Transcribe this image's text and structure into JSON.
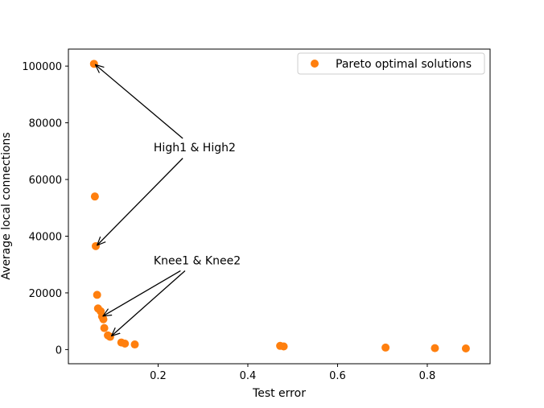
{
  "chart_data": {
    "type": "scatter",
    "xlabel": "Test error",
    "ylabel": "Average local connections",
    "xlim": [
      0.0,
      0.94
    ],
    "ylim": [
      -5000,
      106000
    ],
    "xticks": [
      0.2,
      0.4,
      0.6,
      0.8
    ],
    "xtick_labels": [
      "0.2",
      "0.4",
      "0.6",
      "0.8"
    ],
    "yticks": [
      0,
      20000,
      40000,
      60000,
      80000,
      100000
    ],
    "ytick_labels": [
      "0",
      "20000",
      "40000",
      "60000",
      "80000",
      "100000"
    ],
    "grid": false,
    "legend_position": "top-right",
    "series": [
      {
        "name": "Pareto optimal solutions",
        "color": "#ff7f0e",
        "points": [
          {
            "x": 0.057,
            "y": 100800
          },
          {
            "x": 0.059,
            "y": 54000
          },
          {
            "x": 0.061,
            "y": 36500
          },
          {
            "x": 0.064,
            "y": 19300
          },
          {
            "x": 0.066,
            "y": 14500
          },
          {
            "x": 0.072,
            "y": 13500
          },
          {
            "x": 0.075,
            "y": 11700
          },
          {
            "x": 0.078,
            "y": 10700
          },
          {
            "x": 0.08,
            "y": 7600
          },
          {
            "x": 0.088,
            "y": 5000
          },
          {
            "x": 0.093,
            "y": 4500
          },
          {
            "x": 0.118,
            "y": 2500
          },
          {
            "x": 0.126,
            "y": 2100
          },
          {
            "x": 0.148,
            "y": 1800
          },
          {
            "x": 0.472,
            "y": 1300
          },
          {
            "x": 0.48,
            "y": 1100
          },
          {
            "x": 0.707,
            "y": 700
          },
          {
            "x": 0.817,
            "y": 500
          },
          {
            "x": 0.886,
            "y": 400
          }
        ]
      }
    ],
    "annotations": [
      {
        "text": "High1 & High2",
        "text_anchor": {
          "x": 0.19,
          "y": 70000
        },
        "arrow_from": {
          "x": 0.255,
          "y": 74500
        },
        "arrow_to": {
          "x": 0.06,
          "y": 100500
        }
      },
      {
        "text": "High1 & High2",
        "text_anchor": {
          "x": 0.19,
          "y": 70000
        },
        "arrow_from": {
          "x": 0.255,
          "y": 67500
        },
        "arrow_to": {
          "x": 0.064,
          "y": 36800
        }
      },
      {
        "text": "Knee1 & Knee2",
        "text_anchor": {
          "x": 0.19,
          "y": 30000
        },
        "arrow_from": {
          "x": 0.25,
          "y": 27800
        },
        "arrow_to": {
          "x": 0.077,
          "y": 11800
        }
      },
      {
        "text": "Knee1 & Knee2",
        "text_anchor": {
          "x": 0.19,
          "y": 30000
        },
        "arrow_from": {
          "x": 0.26,
          "y": 27800
        },
        "arrow_to": {
          "x": 0.096,
          "y": 4800
        }
      }
    ]
  }
}
